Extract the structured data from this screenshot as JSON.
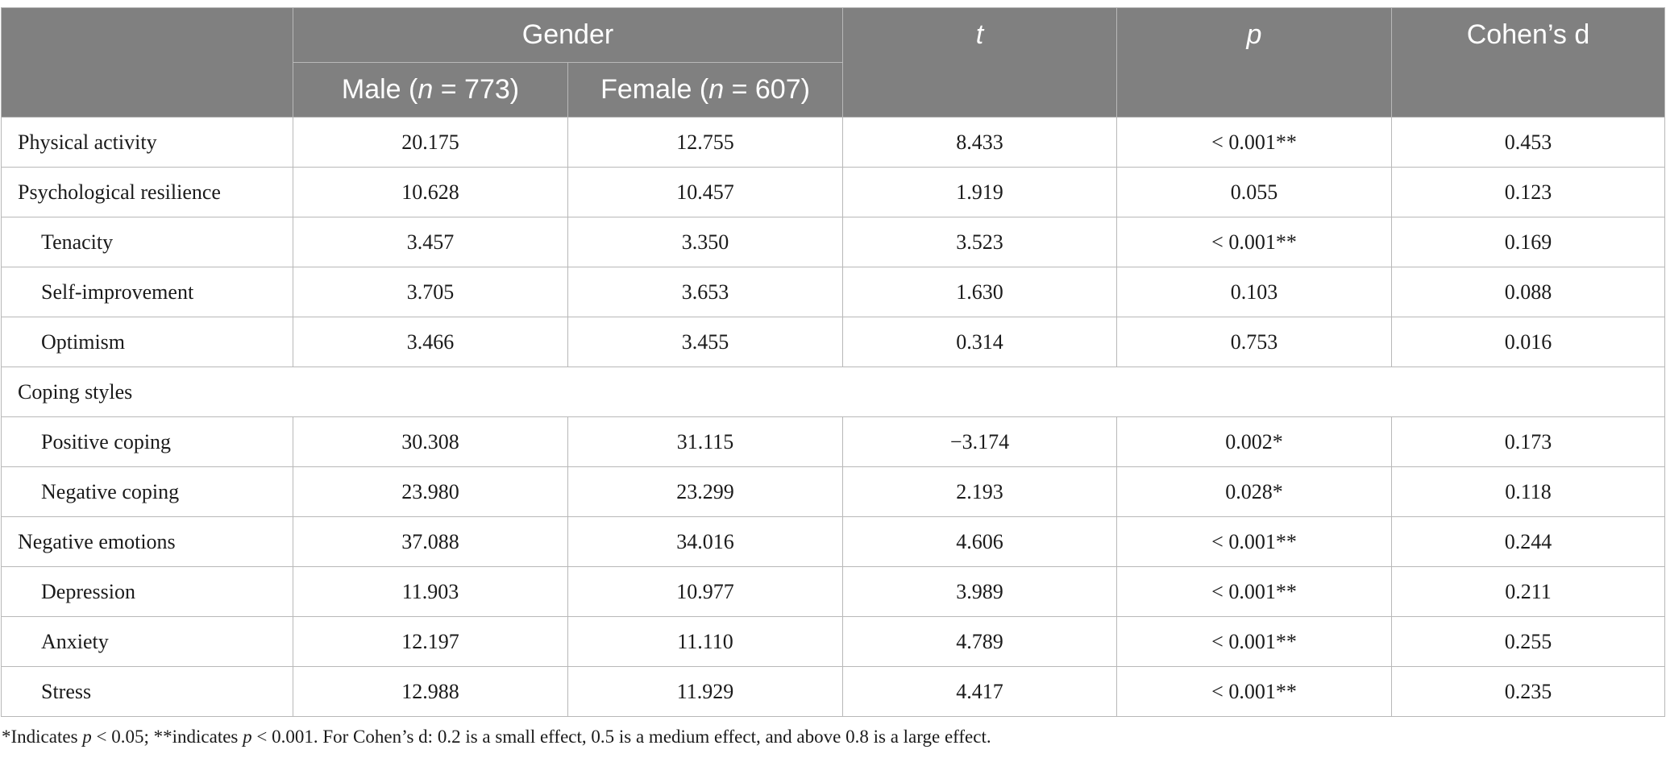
{
  "header": {
    "gender": "Gender",
    "t": "t",
    "p": "p",
    "cohens_d": "Cohen’s d",
    "male_prefix": "Male (",
    "male_n_symbol": "n",
    "male_n_value": " = 773)",
    "female_prefix": "Female (",
    "female_n_symbol": "n",
    "female_n_value": " = 607)"
  },
  "rows": [
    {
      "label": "Physical activity",
      "male": "20.175",
      "female": "12.755",
      "t": "8.433",
      "p": "< 0.001**",
      "d": "0.453"
    },
    {
      "label": "Psychological resilience",
      "male": "10.628",
      "female": "10.457",
      "t": "1.919",
      "p": "0.055",
      "d": "0.123"
    },
    {
      "label": "Tenacity",
      "male": "3.457",
      "female": "3.350",
      "t": "3.523",
      "p": "< 0.001**",
      "d": "0.169"
    },
    {
      "label": "Self-improvement",
      "male": "3.705",
      "female": "3.653",
      "t": "1.630",
      "p": "0.103",
      "d": "0.088"
    },
    {
      "label": "Optimism",
      "male": "3.466",
      "female": "3.455",
      "t": "0.314",
      "p": "0.753",
      "d": "0.016"
    },
    {
      "label": "Coping styles"
    },
    {
      "label": "Positive coping",
      "male": "30.308",
      "female": "31.115",
      "t": "−3.174",
      "p": "0.002*",
      "d": "0.173"
    },
    {
      "label": "Negative coping",
      "male": "23.980",
      "female": "23.299",
      "t": "2.193",
      "p": "0.028*",
      "d": "0.118"
    },
    {
      "label": "Negative emotions",
      "male": "37.088",
      "female": "34.016",
      "t": "4.606",
      "p": "< 0.001**",
      "d": "0.244"
    },
    {
      "label": "Depression",
      "male": "11.903",
      "female": "10.977",
      "t": "3.989",
      "p": "< 0.001**",
      "d": "0.211"
    },
    {
      "label": "Anxiety",
      "male": "12.197",
      "female": "11.110",
      "t": "4.789",
      "p": "< 0.001**",
      "d": "0.255"
    },
    {
      "label": "Stress",
      "male": "12.988",
      "female": "11.929",
      "t": "4.417",
      "p": "< 0.001**",
      "d": "0.235"
    }
  ],
  "footnote": {
    "part1": "*Indicates ",
    "p1": "p",
    "part2": " < 0.05; **indicates ",
    "p2": "p",
    "part3": " < 0.001. For Cohen’s d: 0.2 is a small effect, 0.5 is a medium effect, and above 0.8 is a large effect."
  }
}
